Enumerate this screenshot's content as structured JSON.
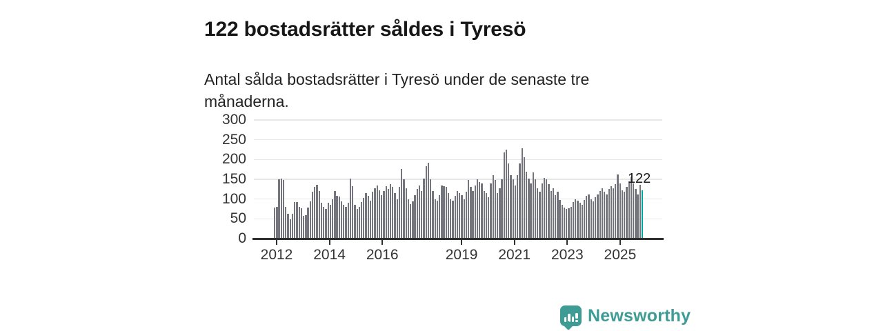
{
  "header": {
    "title": "122 bostadsrätter såldes i Tyresö",
    "subtitle": "Antal sålda bostadsrätter i Tyresö under de senaste tre månaderna."
  },
  "chart_data": {
    "type": "bar",
    "title": "122 bostadsrätter såldes i Tyresö",
    "xlabel": "",
    "ylabel": "",
    "frequency": "monthly",
    "x_start": "2012-01",
    "x_end": "2025-10",
    "ylim": [
      0,
      300
    ],
    "yticks": [
      0,
      50,
      100,
      150,
      200,
      250,
      300
    ],
    "xticks": [
      2012,
      2014,
      2016,
      2019,
      2021,
      2023,
      2025
    ],
    "grid": true,
    "values": [
      79,
      81,
      150,
      151,
      148,
      80,
      63,
      48,
      62,
      92,
      93,
      80,
      76,
      58,
      60,
      79,
      95,
      118,
      131,
      136,
      120,
      90,
      80,
      75,
      90,
      85,
      100,
      120,
      109,
      106,
      95,
      86,
      80,
      90,
      152,
      133,
      86,
      75,
      80,
      92,
      103,
      115,
      108,
      96,
      118,
      128,
      135,
      122,
      110,
      120,
      132,
      125,
      138,
      130,
      115,
      100,
      130,
      177,
      150,
      128,
      100,
      88,
      95,
      110,
      125,
      135,
      120,
      152,
      183,
      192,
      150,
      120,
      100,
      96,
      110,
      135,
      132,
      130,
      115,
      100,
      96,
      108,
      120,
      115,
      110,
      100,
      118,
      148,
      130,
      120,
      135,
      150,
      143,
      140,
      120,
      115,
      105,
      140,
      160,
      148,
      115,
      128,
      150,
      218,
      225,
      190,
      160,
      150,
      135,
      160,
      190,
      228,
      205,
      170,
      152,
      140,
      168,
      150,
      128,
      118,
      140,
      153,
      150,
      138,
      120,
      128,
      110,
      118,
      98,
      85,
      78,
      75,
      77,
      80,
      92,
      100,
      96,
      90,
      85,
      98,
      108,
      112,
      100,
      95,
      105,
      112,
      120,
      128,
      118,
      112,
      125,
      132,
      128,
      138,
      162,
      140,
      122,
      118,
      130,
      145,
      155,
      140,
      125,
      112,
      136,
      122
    ],
    "highlight": {
      "index": 165,
      "value": 122,
      "label": "122"
    },
    "colors": {
      "bar": "#75757d",
      "highlight": "#00a69e",
      "grid": "#e7e7e7",
      "axis": "#2f2f2f",
      "tick_text": "#333333"
    }
  },
  "footer": {
    "brand": "Newsworthy",
    "logo_icon": "bar-chart-speech-bubble",
    "brand_color": "#3e9c95"
  }
}
